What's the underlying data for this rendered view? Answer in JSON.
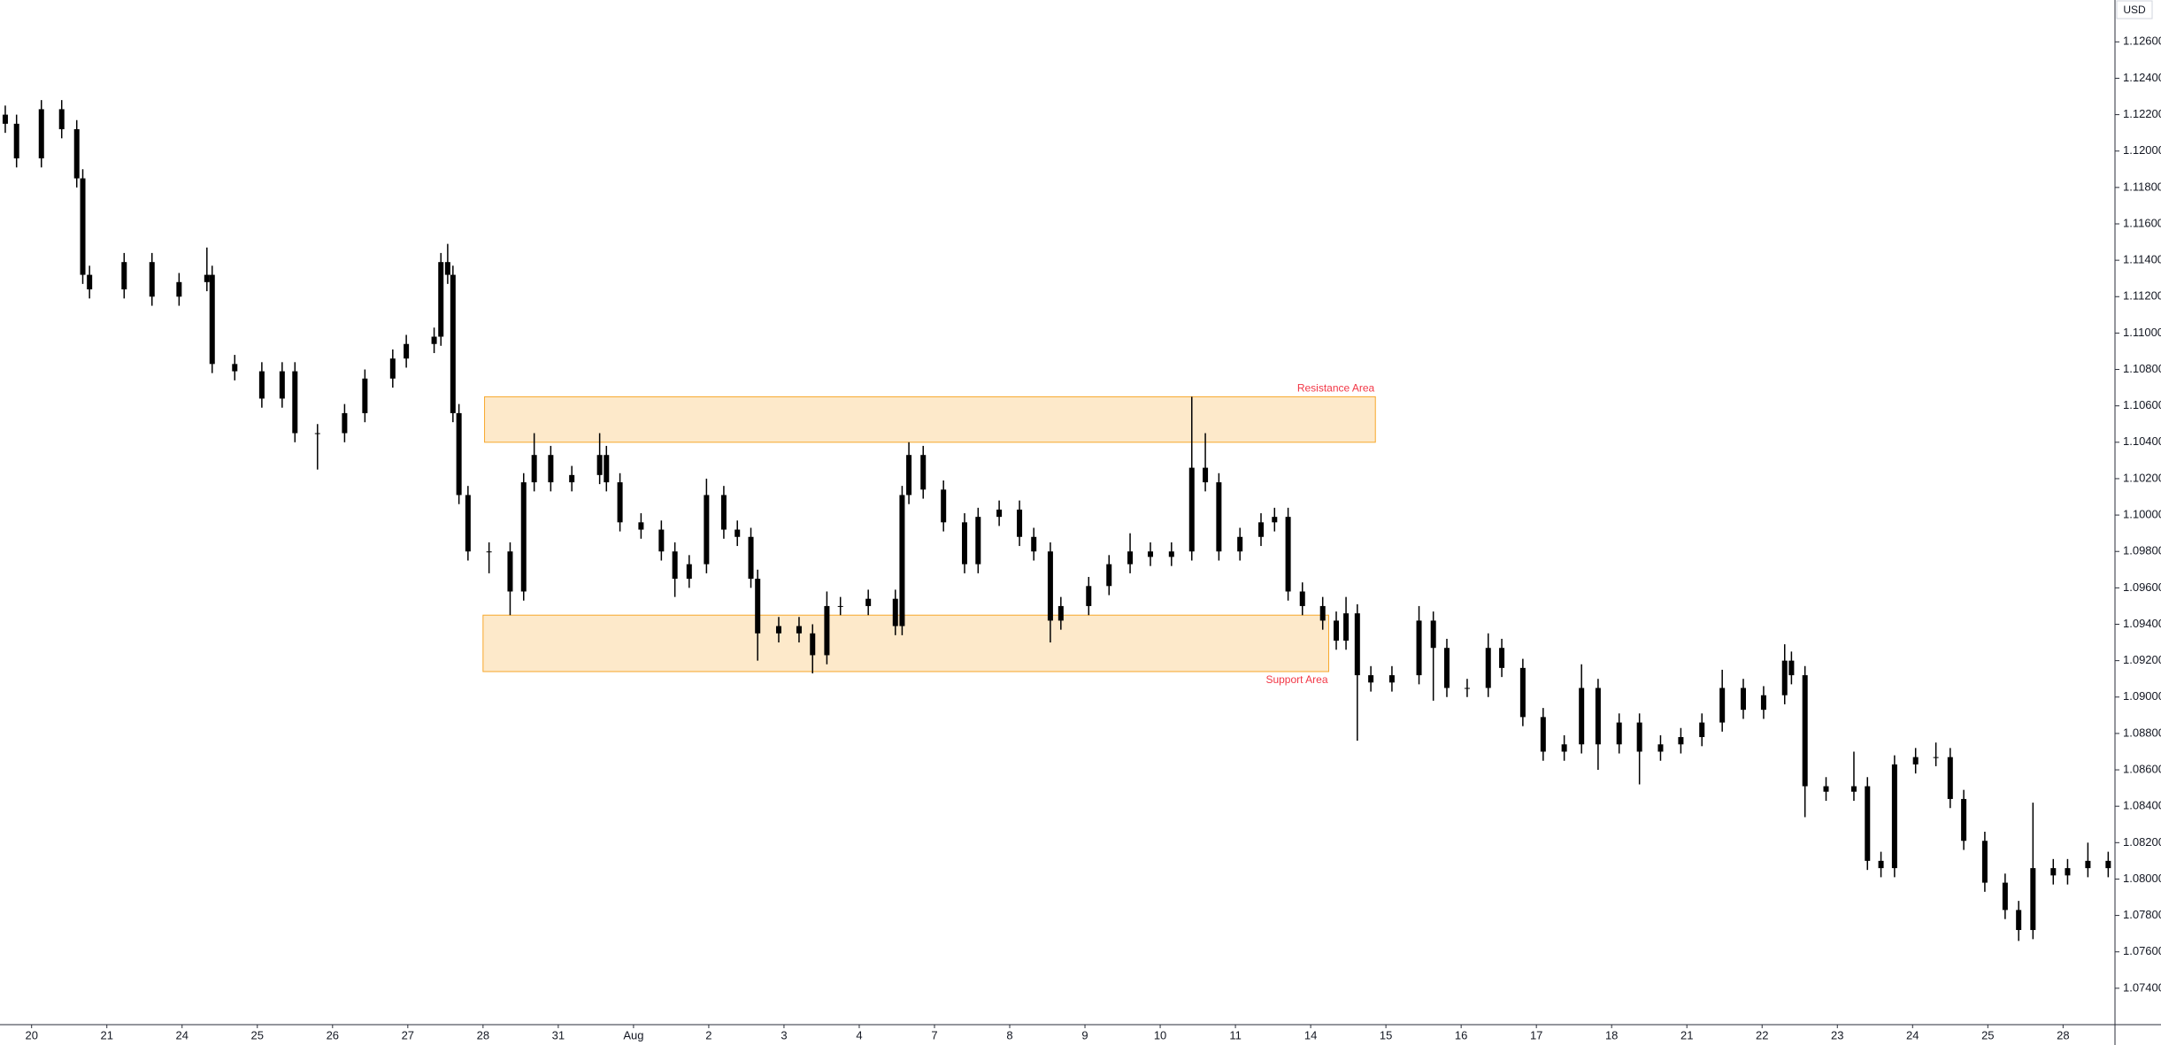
{
  "chart_data": {
    "type": "candlestick",
    "axis_unit": "USD",
    "color": "#000000",
    "grid": false,
    "xlim": [
      -0.42,
      27.69
    ],
    "ylim": [
      1.072,
      1.1283
    ],
    "xticks": [
      {
        "value": 0,
        "label": "20"
      },
      {
        "value": 1,
        "label": "21"
      },
      {
        "value": 2,
        "label": "24"
      },
      {
        "value": 3,
        "label": "25"
      },
      {
        "value": 4,
        "label": "26"
      },
      {
        "value": 5,
        "label": "27"
      },
      {
        "value": 6,
        "label": "28"
      },
      {
        "value": 7,
        "label": "31"
      },
      {
        "value": 8,
        "label": "Aug"
      },
      {
        "value": 9,
        "label": "2"
      },
      {
        "value": 10,
        "label": "3"
      },
      {
        "value": 11,
        "label": "4"
      },
      {
        "value": 12,
        "label": "7"
      },
      {
        "value": 13,
        "label": "8"
      },
      {
        "value": 14,
        "label": "9"
      },
      {
        "value": 15,
        "label": "10"
      },
      {
        "value": 16,
        "label": "11"
      },
      {
        "value": 17,
        "label": "14"
      },
      {
        "value": 18,
        "label": "15"
      },
      {
        "value": 19,
        "label": "16"
      },
      {
        "value": 20,
        "label": "17"
      },
      {
        "value": 21,
        "label": "18"
      },
      {
        "value": 22,
        "label": "21"
      },
      {
        "value": 23,
        "label": "22"
      },
      {
        "value": 24,
        "label": "23"
      },
      {
        "value": 25,
        "label": "24"
      },
      {
        "value": 26,
        "label": "25"
      },
      {
        "value": 27,
        "label": "28"
      }
    ],
    "yticks": [
      {
        "value": 1.074,
        "label": "1.07400"
      },
      {
        "value": 1.076,
        "label": "1.07600"
      },
      {
        "value": 1.078,
        "label": "1.07800"
      },
      {
        "value": 1.08,
        "label": "1.08000"
      },
      {
        "value": 1.082,
        "label": "1.08200"
      },
      {
        "value": 1.084,
        "label": "1.08400"
      },
      {
        "value": 1.086,
        "label": "1.08600"
      },
      {
        "value": 1.088,
        "label": "1.08800"
      },
      {
        "value": 1.09,
        "label": "1.09000"
      },
      {
        "value": 1.092,
        "label": "1.09200"
      },
      {
        "value": 1.094,
        "label": "1.09400"
      },
      {
        "value": 1.096,
        "label": "1.09600"
      },
      {
        "value": 1.098,
        "label": "1.09800"
      },
      {
        "value": 1.1,
        "label": "1.10000"
      },
      {
        "value": 1.102,
        "label": "1.10200"
      },
      {
        "value": 1.104,
        "label": "1.10400"
      },
      {
        "value": 1.106,
        "label": "1.10600"
      },
      {
        "value": 1.108,
        "label": "1.10800"
      },
      {
        "value": 1.11,
        "label": "1.11000"
      },
      {
        "value": 1.112,
        "label": "1.11200"
      },
      {
        "value": 1.114,
        "label": "1.11400"
      },
      {
        "value": 1.116,
        "label": "1.11600"
      },
      {
        "value": 1.118,
        "label": "1.11800"
      },
      {
        "value": 1.12,
        "label": "1.12000"
      },
      {
        "value": 1.122,
        "label": "1.12200"
      },
      {
        "value": 1.124,
        "label": "1.12400"
      },
      {
        "value": 1.126,
        "label": "1.12600"
      }
    ],
    "x": [
      -0.35,
      -0.2,
      0.13,
      0.4,
      0.6,
      0.68,
      0.77,
      1.23,
      1.6,
      1.96,
      2.33,
      2.4,
      2.7,
      3.06,
      3.33,
      3.5,
      3.8,
      4.16,
      4.43,
      4.8,
      4.98,
      5.35,
      5.44,
      5.53,
      5.6,
      5.68,
      5.8,
      6.08,
      6.36,
      6.54,
      6.68,
      6.9,
      7.18,
      7.55,
      7.64,
      7.82,
      8.1,
      8.37,
      8.55,
      8.74,
      8.97,
      9.2,
      9.38,
      9.56,
      9.65,
      9.93,
      10.2,
      10.38,
      10.57,
      10.75,
      11.12,
      11.48,
      11.57,
      11.66,
      11.85,
      12.12,
      12.4,
      12.58,
      12.86,
      13.13,
      13.32,
      13.54,
      13.68,
      14.05,
      14.32,
      14.6,
      14.87,
      15.15,
      15.42,
      15.6,
      15.78,
      16.06,
      16.34,
      16.52,
      16.7,
      16.89,
      17.16,
      17.34,
      17.47,
      17.62,
      17.8,
      18.08,
      18.44,
      18.63,
      18.81,
      19.08,
      19.36,
      19.54,
      19.82,
      20.09,
      20.37,
      20.6,
      20.82,
      21.1,
      21.37,
      21.65,
      21.92,
      22.2,
      22.47,
      22.75,
      23.02,
      23.3,
      23.39,
      23.57,
      23.85,
      24.22,
      24.4,
      24.58,
      24.76,
      25.04,
      25.31,
      25.5,
      25.68,
      25.96,
      26.23,
      26.41,
      26.6,
      26.87,
      27.06,
      27.33,
      27.6
    ],
    "open": [
      1.122,
      1.1215,
      1.1196,
      1.1223,
      1.1212,
      1.1185,
      1.1132,
      1.1124,
      1.1139,
      1.112,
      1.1128,
      1.1132,
      1.1083,
      1.1079,
      1.1064,
      1.1079,
      1.1045,
      1.1045,
      1.1056,
      1.1075,
      1.1086,
      1.1094,
      1.1098,
      1.1139,
      1.1132,
      1.1056,
      1.1011,
      1.098,
      1.098,
      1.0958,
      1.1018,
      1.1033,
      1.1018,
      1.1022,
      1.1033,
      1.1018,
      1.0996,
      1.0992,
      1.098,
      1.0965,
      1.0973,
      1.1011,
      1.0992,
      1.0988,
      1.0965,
      1.0935,
      1.0939,
      1.0935,
      1.0923,
      1.095,
      1.095,
      1.0954,
      1.0939,
      1.1011,
      1.1033,
      1.1014,
      1.0996,
      1.0973,
      1.0999,
      1.1003,
      1.0988,
      1.098,
      1.0942,
      1.095,
      1.0961,
      1.0973,
      1.098,
      1.0977,
      1.098,
      1.1026,
      1.1018,
      1.098,
      1.0988,
      1.0996,
      1.0999,
      1.0958,
      1.095,
      1.0942,
      1.0931,
      1.0946,
      1.0912,
      1.0908,
      1.0912,
      1.0942,
      1.0927,
      1.0905,
      1.0905,
      1.0927,
      1.0916,
      1.0889,
      1.087,
      1.0874,
      1.0905,
      1.0874,
      1.0886,
      1.087,
      1.0874,
      1.0878,
      1.0886,
      1.0905,
      1.0893,
      1.0901,
      1.092,
      1.0912,
      1.0851,
      1.0848,
      1.0851,
      1.081,
      1.0806,
      1.0863,
      1.0867,
      1.0867,
      1.0844,
      1.0821,
      1.0798,
      1.0783,
      1.0772,
      1.0806,
      1.0802,
      1.0806,
      1.081
    ],
    "high": [
      1.1225,
      1.122,
      1.1228,
      1.1228,
      1.1217,
      1.119,
      1.1137,
      1.1144,
      1.1144,
      1.1133,
      1.1147,
      1.1137,
      1.1088,
      1.1084,
      1.1084,
      1.1084,
      1.105,
      1.1061,
      1.108,
      1.1091,
      1.1099,
      1.1103,
      1.1144,
      1.1149,
      1.1137,
      1.1061,
      1.1016,
      1.0985,
      1.0985,
      1.1023,
      1.1045,
      1.1038,
      1.1027,
      1.1045,
      1.1038,
      1.1023,
      1.1001,
      1.0997,
      1.0985,
      1.0978,
      1.102,
      1.1016,
      1.0997,
      1.0993,
      1.097,
      1.0944,
      1.0944,
      1.094,
      1.0958,
      1.0955,
      1.0959,
      1.0959,
      1.1016,
      1.104,
      1.1038,
      1.1019,
      1.1001,
      1.1004,
      1.1008,
      1.1008,
      1.0993,
      1.0985,
      1.0955,
      1.0966,
      1.0978,
      1.099,
      1.0985,
      1.0985,
      1.1065,
      1.1045,
      1.1023,
      1.0993,
      1.1001,
      1.1004,
      1.1004,
      1.0963,
      1.0955,
      1.0947,
      1.0955,
      1.0951,
      1.0917,
      1.0917,
      1.095,
      1.0947,
      1.0932,
      1.091,
      1.0935,
      1.0932,
      1.0921,
      1.0894,
      1.0879,
      1.0918,
      1.091,
      1.0891,
      1.0891,
      1.0879,
      1.0883,
      1.0891,
      1.0915,
      1.091,
      1.0906,
      1.0929,
      1.0925,
      1.0917,
      1.0856,
      1.087,
      1.0856,
      1.0815,
      1.0868,
      1.0872,
      1.0875,
      1.0872,
      1.0849,
      1.0826,
      1.0803,
      1.0788,
      1.0842,
      1.0811,
      1.0811,
      1.082,
      1.0815
    ],
    "low": [
      1.121,
      1.1191,
      1.1191,
      1.1207,
      1.118,
      1.1127,
      1.1119,
      1.1119,
      1.1115,
      1.1115,
      1.1123,
      1.1078,
      1.1074,
      1.1059,
      1.1059,
      1.104,
      1.1025,
      1.104,
      1.1051,
      1.107,
      1.1081,
      1.1089,
      1.1093,
      1.1127,
      1.1051,
      1.1006,
      1.0975,
      1.0968,
      1.0945,
      1.0953,
      1.1013,
      1.1013,
      1.1013,
      1.1017,
      1.1013,
      1.0991,
      1.0987,
      1.0975,
      1.0955,
      1.096,
      1.0968,
      1.0987,
      1.0983,
      1.096,
      1.092,
      1.093,
      1.093,
      1.0913,
      1.0918,
      1.0945,
      1.0945,
      1.0934,
      1.0934,
      1.1006,
      1.1009,
      1.0991,
      1.0968,
      1.0968,
      1.0994,
      1.0983,
      1.0975,
      1.093,
      1.0937,
      1.0945,
      1.0956,
      1.0968,
      1.0972,
      1.0972,
      1.0975,
      1.1013,
      1.0975,
      1.0975,
      1.0983,
      1.0991,
      1.0953,
      1.0945,
      1.0937,
      1.0926,
      1.0926,
      1.0876,
      1.0903,
      1.0903,
      1.0907,
      1.0898,
      1.09,
      1.09,
      1.09,
      1.0911,
      1.0884,
      1.0865,
      1.0865,
      1.0869,
      1.086,
      1.0869,
      1.0852,
      1.0865,
      1.0869,
      1.0873,
      1.0881,
      1.0888,
      1.0888,
      1.0896,
      1.0907,
      1.0834,
      1.0843,
      1.0843,
      1.0805,
      1.0801,
      1.0801,
      1.0858,
      1.0862,
      1.0839,
      1.0816,
      1.0793,
      1.0778,
      1.0766,
      1.0767,
      1.0797,
      1.0797,
      1.0801,
      1.0801
    ],
    "close": [
      1.1215,
      1.1196,
      1.1223,
      1.1212,
      1.1185,
      1.1132,
      1.1124,
      1.1139,
      1.112,
      1.1128,
      1.1132,
      1.1083,
      1.1079,
      1.1064,
      1.1079,
      1.1045,
      1.1045,
      1.1056,
      1.1075,
      1.1086,
      1.1094,
      1.1098,
      1.1139,
      1.1132,
      1.1056,
      1.1011,
      1.098,
      1.098,
      1.0958,
      1.1018,
      1.1033,
      1.1018,
      1.1022,
      1.1033,
      1.1018,
      1.0996,
      1.0992,
      1.098,
      1.0965,
      1.0973,
      1.1011,
      1.0992,
      1.0988,
      1.0965,
      1.0935,
      1.0939,
      1.0935,
      1.0923,
      1.095,
      1.095,
      1.0954,
      1.0939,
      1.1011,
      1.1033,
      1.1014,
      1.0996,
      1.0973,
      1.0999,
      1.1003,
      1.0988,
      1.098,
      1.0942,
      1.095,
      1.0961,
      1.0973,
      1.098,
      1.0977,
      1.098,
      1.1026,
      1.1018,
      1.098,
      1.0988,
      1.0996,
      1.0999,
      1.0958,
      1.095,
      1.0942,
      1.0931,
      1.0946,
      1.0912,
      1.0908,
      1.0912,
      1.0942,
      1.0927,
      1.0905,
      1.0905,
      1.0927,
      1.0916,
      1.0889,
      1.087,
      1.0874,
      1.0905,
      1.0874,
      1.0886,
      1.087,
      1.0874,
      1.0878,
      1.0886,
      1.0905,
      1.0893,
      1.0901,
      1.092,
      1.0912,
      1.0851,
      1.0848,
      1.0851,
      1.081,
      1.0806,
      1.0863,
      1.0867,
      1.0867,
      1.0844,
      1.0821,
      1.0798,
      1.0783,
      1.0772,
      1.0806,
      1.0802,
      1.0806,
      1.081,
      1.0806
    ],
    "zones": [
      {
        "label": "Resistance Area",
        "x": [
          6.02,
          17.86
        ],
        "y": [
          1.104,
          1.1065
        ],
        "color": "#f7a72a",
        "label_color": "#f23645",
        "label_side": "top"
      },
      {
        "label": "Support Area",
        "x": [
          6.0,
          17.24
        ],
        "y": [
          1.0914,
          1.0945
        ],
        "color": "#f7a72a",
        "label_color": "#f23645",
        "label_side": "bottom"
      }
    ]
  }
}
